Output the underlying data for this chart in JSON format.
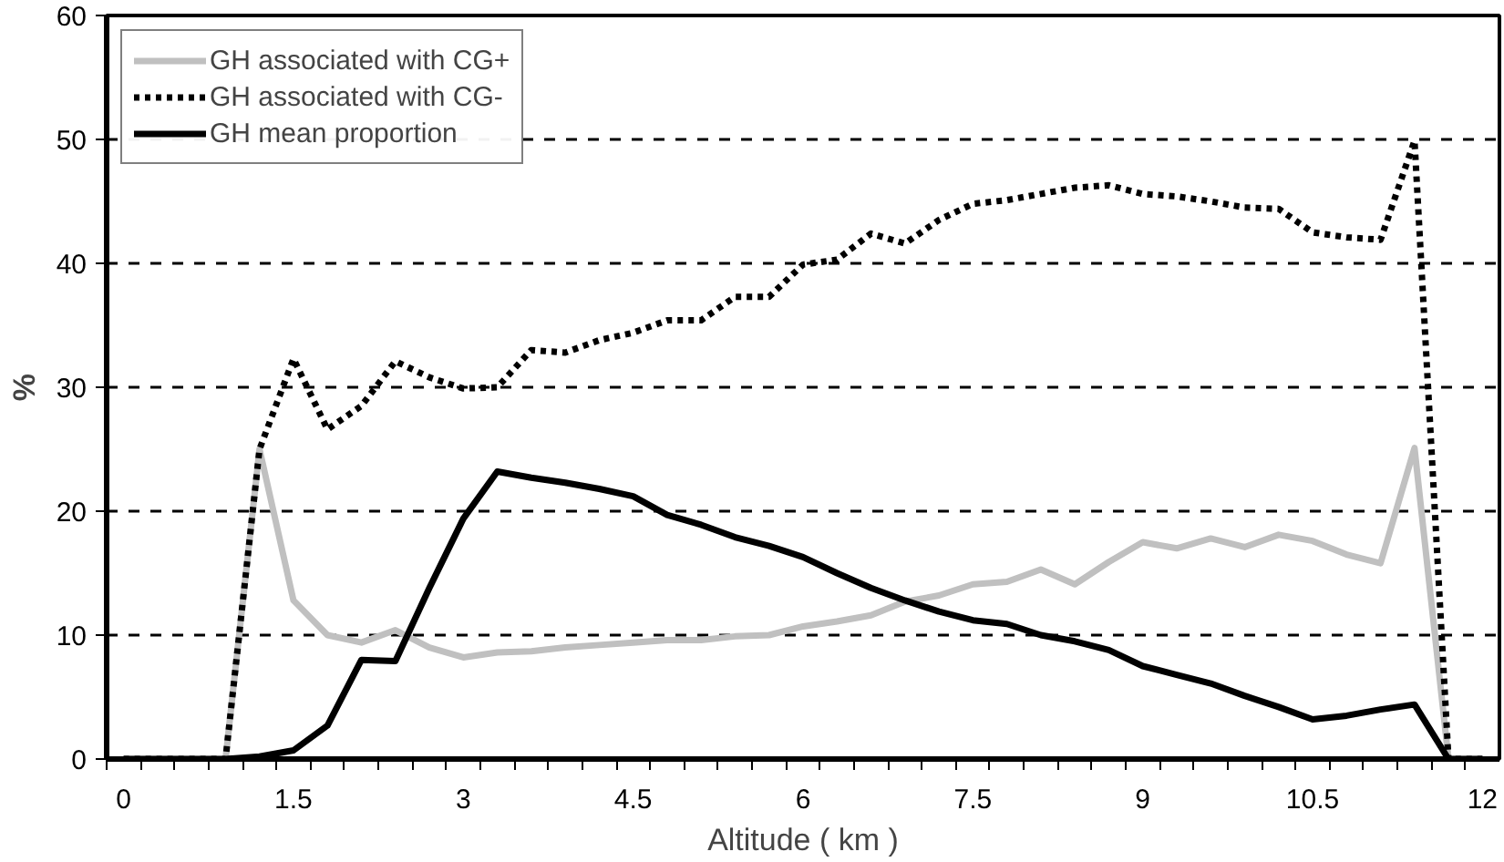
{
  "chart_data": {
    "type": "line",
    "xlabel": "Altitude ( km )",
    "ylabel": "%",
    "x": [
      0,
      0.3,
      0.6,
      0.9,
      1.2,
      1.5,
      1.8,
      2.1,
      2.4,
      2.7,
      3.0,
      3.3,
      3.6,
      3.9,
      4.2,
      4.5,
      4.8,
      5.1,
      5.4,
      5.7,
      6.0,
      6.3,
      6.6,
      6.9,
      7.2,
      7.5,
      7.8,
      8.1,
      8.4,
      8.7,
      9.0,
      9.3,
      9.6,
      9.9,
      10.2,
      10.5,
      10.8,
      11.1,
      11.4,
      11.7,
      12.0
    ],
    "series": [
      {
        "name": "GH associated with CG+",
        "color": "#c0c0c0",
        "line_style": "solid",
        "values": [
          0,
          0,
          0,
          0,
          25,
          12.8,
          10.0,
          9.4,
          10.4,
          9.0,
          8.2,
          8.6,
          8.7,
          9.0,
          9.2,
          9.4,
          9.6,
          9.6,
          9.9,
          10.0,
          10.7,
          11.1,
          11.6,
          12.7,
          13.2,
          14.1,
          14.3,
          15.3,
          14.1,
          15.9,
          17.5,
          17.0,
          17.8,
          17.1,
          18.1,
          17.6,
          16.5,
          15.8,
          25.1,
          0,
          0
        ]
      },
      {
        "name": "GH associated with CG-",
        "color": "#000000",
        "line_style": "dotted",
        "values": [
          0,
          0,
          0,
          0,
          25,
          32.3,
          26.6,
          28.5,
          32.1,
          30.8,
          29.9,
          30.0,
          33.0,
          32.8,
          33.8,
          34.4,
          35.4,
          35.4,
          37.3,
          37.3,
          39.9,
          40.3,
          42.4,
          41.6,
          43.5,
          44.8,
          45.1,
          45.6,
          46.1,
          46.3,
          45.6,
          45.4,
          45.0,
          44.5,
          44.4,
          42.5,
          42.1,
          41.9,
          49.9,
          0,
          0
        ]
      },
      {
        "name": "GH mean proportion",
        "color": "#000000",
        "line_style": "solid",
        "values": [
          0,
          0,
          0,
          0,
          0.2,
          0.7,
          2.7,
          8.0,
          7.9,
          13.8,
          19.4,
          23.2,
          22.7,
          22.3,
          21.8,
          21.2,
          19.7,
          18.9,
          17.9,
          17.2,
          16.3,
          15.0,
          13.8,
          12.8,
          11.9,
          11.2,
          10.9,
          10.0,
          9.5,
          8.8,
          7.5,
          6.8,
          6.1,
          5.1,
          4.2,
          3.2,
          3.5,
          4.0,
          4.4,
          0,
          0
        ]
      }
    ],
    "xlim": [
      -0.15,
      12.15
    ],
    "xticks": [
      0,
      1.5,
      3,
      4.5,
      6,
      7.5,
      9,
      10.5,
      12
    ],
    "ylim": [
      0,
      60
    ],
    "yticks": [
      0,
      10,
      20,
      30,
      40,
      50,
      60
    ],
    "grid": "y",
    "legend": "top left",
    "marker": "none"
  }
}
